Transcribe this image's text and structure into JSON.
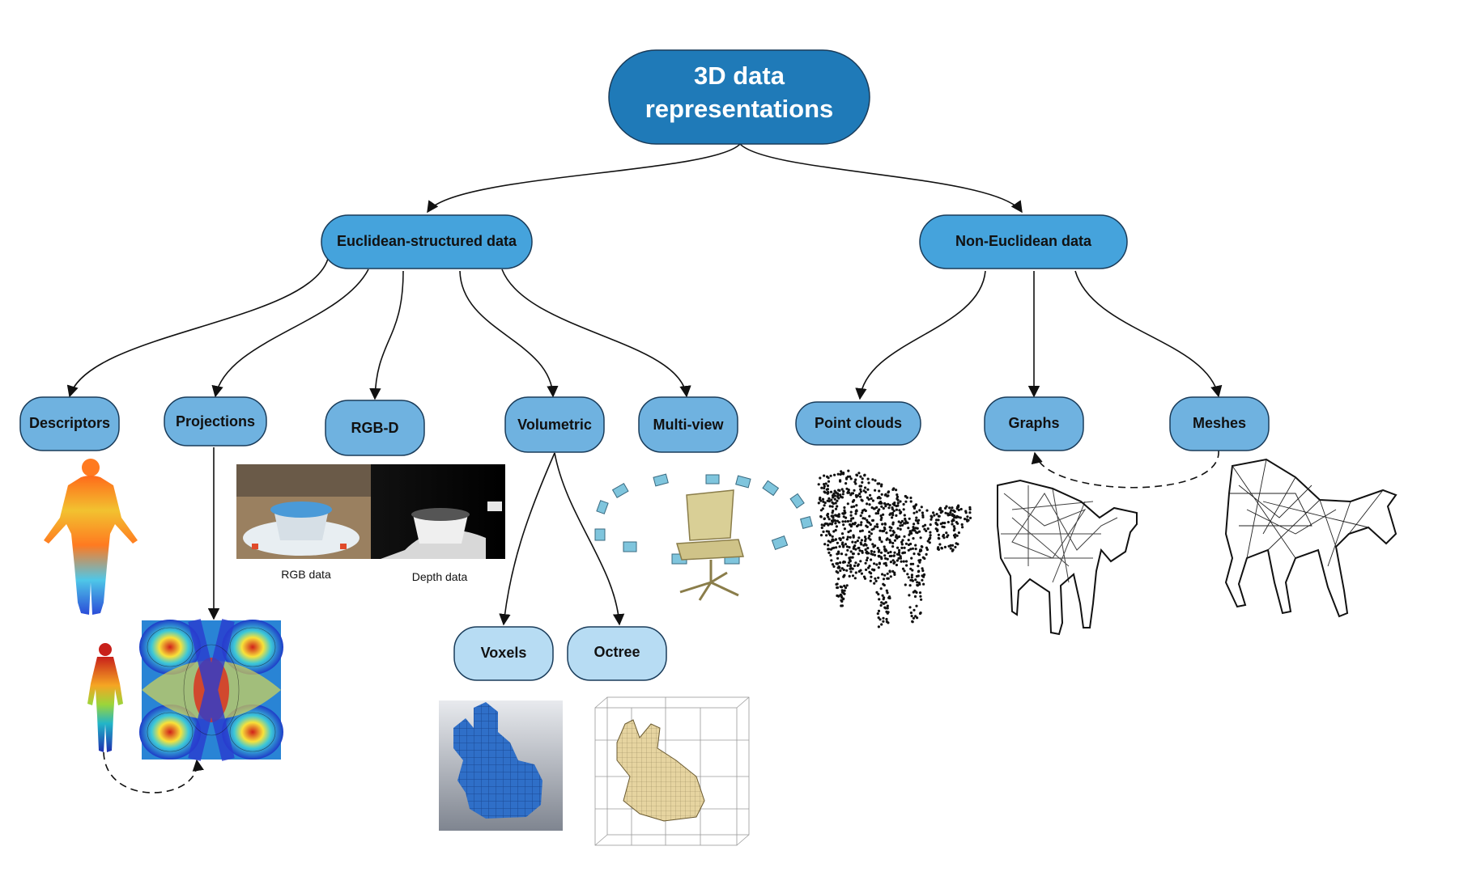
{
  "root": {
    "label_line1": "3D data",
    "label_line2": "representations"
  },
  "categories": {
    "euclidean": "Euclidean-structured data",
    "non_euclidean": "Non-Euclidean data"
  },
  "nodes": {
    "descriptors": "Descriptors",
    "projections": "Projections",
    "rgbd": "RGB-D",
    "volumetric": "Volumetric",
    "multiview": "Multi-view",
    "point_clouds": "Point clouds",
    "graphs": "Graphs",
    "meshes": "Meshes",
    "voxels": "Voxels",
    "octree": "Octree"
  },
  "captions": {
    "rgb": "RGB data",
    "depth": "Depth data"
  },
  "colors": {
    "root_fill": "#1f7ab8",
    "category_fill": "#45a3dc",
    "node_fill": "#6fb2e0",
    "leaf_fill": "#b7dcf3",
    "outline": "#1a3c5a"
  }
}
